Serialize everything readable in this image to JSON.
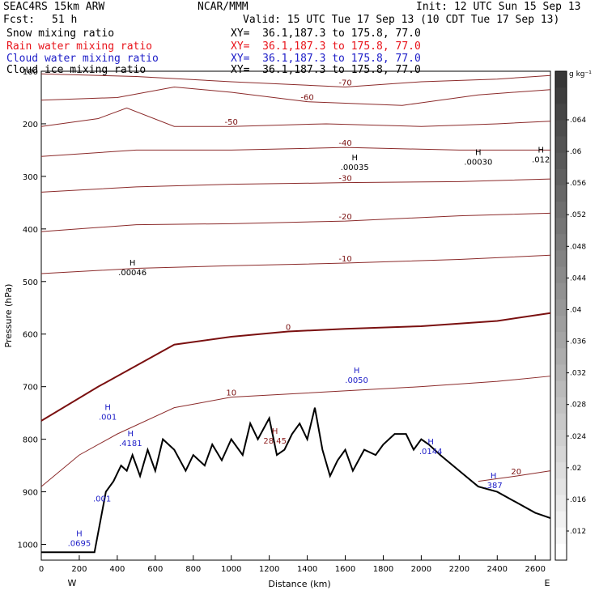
{
  "header": {
    "model": "SEAC4RS 15km ARW",
    "center": "NCAR/MMM",
    "init": "Init: 12 UTC Sun 15 Sep 13",
    "fcst_label": "Fcst:",
    "fcst_value": "51 h",
    "valid": "Valid: 15 UTC Tue 17 Sep 13 (10 CDT Tue 17 Sep 13)",
    "fields": [
      {
        "name": "Snow mixing ratio",
        "xy": "XY=  36.1,187.3 to 175.8, 77.0",
        "color": "#000000"
      },
      {
        "name": "Rain water mixing ratio",
        "xy": "XY=  36.1,187.3 to 175.8, 77.0",
        "color": "#e8141b"
      },
      {
        "name": "Cloud water mixing ratio",
        "xy": "XY=  36.1,187.3 to 175.8, 77.0",
        "color": "#2020c8"
      },
      {
        "name": "Cloud ice mixing ratio",
        "xy": "XY=  36.1,187.3 to 175.8, 77.0",
        "color": "#000000"
      }
    ]
  },
  "chart_data": {
    "type": "cross-section",
    "xlabel": "Distance (km)",
    "ylabel": "Pressure (hPa)",
    "xlim": [
      0,
      2680
    ],
    "ylim": [
      1030,
      100
    ],
    "x_ticks": [
      0,
      200,
      400,
      600,
      800,
      1000,
      1200,
      1400,
      1600,
      1800,
      2000,
      2200,
      2400,
      2600
    ],
    "y_ticks": [
      100,
      200,
      300,
      400,
      500,
      600,
      700,
      800,
      900,
      1000
    ],
    "x_end_labels": {
      "left": "W",
      "right": "E"
    },
    "colorbar": {
      "unit": "g kg⁻¹",
      "ticks": [
        ".064",
        ".06",
        ".056",
        ".052",
        ".048",
        ".044",
        ".04",
        ".036",
        ".032",
        ".028",
        ".024",
        ".02",
        ".016",
        ".012"
      ]
    },
    "isotherms": [
      {
        "label": "-70",
        "points": [
          [
            0,
            105
          ],
          [
            500,
            110
          ],
          [
            1000,
            120
          ],
          [
            1600,
            130
          ],
          [
            2000,
            120
          ],
          [
            2400,
            115
          ],
          [
            2680,
            108
          ]
        ]
      },
      {
        "label": "-60",
        "points": [
          [
            0,
            155
          ],
          [
            400,
            150
          ],
          [
            700,
            130
          ],
          [
            1000,
            140
          ],
          [
            1400,
            158
          ],
          [
            1900,
            165
          ],
          [
            2300,
            145
          ],
          [
            2680,
            135
          ]
        ]
      },
      {
        "label": "-50",
        "points": [
          [
            0,
            205
          ],
          [
            300,
            190
          ],
          [
            450,
            170
          ],
          [
            700,
            205
          ],
          [
            1000,
            205
          ],
          [
            1500,
            200
          ],
          [
            2000,
            205
          ],
          [
            2400,
            200
          ],
          [
            2680,
            195
          ]
        ]
      },
      {
        "label": "-40",
        "points": [
          [
            0,
            262
          ],
          [
            500,
            250
          ],
          [
            1000,
            250
          ],
          [
            1600,
            245
          ],
          [
            2200,
            250
          ],
          [
            2680,
            250
          ]
        ]
      },
      {
        "label": "-30",
        "points": [
          [
            0,
            330
          ],
          [
            500,
            320
          ],
          [
            1000,
            315
          ],
          [
            1600,
            312
          ],
          [
            2200,
            310
          ],
          [
            2680,
            305
          ]
        ]
      },
      {
        "label": "-20",
        "points": [
          [
            0,
            405
          ],
          [
            500,
            392
          ],
          [
            1000,
            390
          ],
          [
            1600,
            385
          ],
          [
            2200,
            375
          ],
          [
            2680,
            370
          ]
        ]
      },
      {
        "label": "-10",
        "points": [
          [
            0,
            485
          ],
          [
            500,
            475
          ],
          [
            1000,
            470
          ],
          [
            1600,
            465
          ],
          [
            2200,
            458
          ],
          [
            2680,
            450
          ]
        ]
      },
      {
        "label": "0",
        "points": [
          [
            0,
            765
          ],
          [
            300,
            700
          ],
          [
            500,
            660
          ],
          [
            700,
            620
          ],
          [
            1000,
            605
          ],
          [
            1300,
            595
          ],
          [
            1600,
            590
          ],
          [
            2000,
            585
          ],
          [
            2400,
            575
          ],
          [
            2680,
            560
          ]
        ]
      },
      {
        "label": "10",
        "points": [
          [
            0,
            890
          ],
          [
            200,
            830
          ],
          [
            400,
            790
          ],
          [
            700,
            740
          ],
          [
            1000,
            720
          ],
          [
            1500,
            710
          ],
          [
            2000,
            700
          ],
          [
            2400,
            690
          ],
          [
            2680,
            680
          ]
        ]
      },
      {
        "label": "20",
        "points": [
          [
            2300,
            880
          ],
          [
            2500,
            870
          ],
          [
            2680,
            860
          ]
        ]
      }
    ],
    "terrain": [
      [
        0,
        1015
      ],
      [
        280,
        1015
      ],
      [
        340,
        900
      ],
      [
        380,
        880
      ],
      [
        420,
        850
      ],
      [
        450,
        860
      ],
      [
        480,
        830
      ],
      [
        520,
        870
      ],
      [
        560,
        820
      ],
      [
        600,
        860
      ],
      [
        640,
        800
      ],
      [
        700,
        820
      ],
      [
        760,
        860
      ],
      [
        800,
        830
      ],
      [
        860,
        850
      ],
      [
        900,
        810
      ],
      [
        950,
        840
      ],
      [
        1000,
        800
      ],
      [
        1060,
        830
      ],
      [
        1100,
        770
      ],
      [
        1140,
        800
      ],
      [
        1200,
        760
      ],
      [
        1240,
        830
      ],
      [
        1280,
        820
      ],
      [
        1320,
        790
      ],
      [
        1360,
        770
      ],
      [
        1400,
        800
      ],
      [
        1440,
        740
      ],
      [
        1480,
        820
      ],
      [
        1520,
        870
      ],
      [
        1560,
        840
      ],
      [
        1600,
        820
      ],
      [
        1640,
        860
      ],
      [
        1700,
        820
      ],
      [
        1760,
        830
      ],
      [
        1800,
        810
      ],
      [
        1860,
        790
      ],
      [
        1920,
        790
      ],
      [
        1960,
        820
      ],
      [
        2000,
        800
      ],
      [
        2040,
        810
      ],
      [
        2100,
        830
      ],
      [
        2200,
        860
      ],
      [
        2300,
        890
      ],
      [
        2400,
        900
      ],
      [
        2500,
        920
      ],
      [
        2600,
        940
      ],
      [
        2680,
        950
      ]
    ],
    "annotations": [
      {
        "text": "H",
        "label": ".00035",
        "x": 1650,
        "p": 285,
        "color": "#000000"
      },
      {
        "text": "H",
        "label": ".00030",
        "x": 2300,
        "p": 275,
        "color": "#000000"
      },
      {
        "text": "H",
        "label": ".012",
        "x": 2630,
        "p": 270,
        "color": "#000000"
      },
      {
        "text": "H",
        "label": ".00046",
        "x": 480,
        "p": 485,
        "color": "#000000"
      },
      {
        "text": "H",
        "label": ".0050",
        "x": 1660,
        "p": 690,
        "color": "#2020c8"
      },
      {
        "text": "H",
        "label": ".001",
        "x": 350,
        "p": 760,
        "color": "#2020c8"
      },
      {
        "text": "H",
        "label": ".4181",
        "x": 470,
        "p": 810,
        "color": "#2020c8"
      },
      {
        "text": "H",
        "label": ".0144",
        "x": 2050,
        "p": 825,
        "color": "#2020c8"
      },
      {
        "text": "H",
        "label": "28.45",
        "x": 1230,
        "p": 805,
        "color": "#8b1a1a"
      },
      {
        "text": "H",
        "label": ".387",
        "x": 2380,
        "p": 890,
        "color": "#2020c8"
      },
      {
        "text": "",
        "label": ".001",
        "x": 320,
        "p": 915,
        "color": "#2020c8"
      },
      {
        "text": "H",
        "label": ".0695",
        "x": 200,
        "p": 1000,
        "color": "#2020c8"
      }
    ]
  }
}
